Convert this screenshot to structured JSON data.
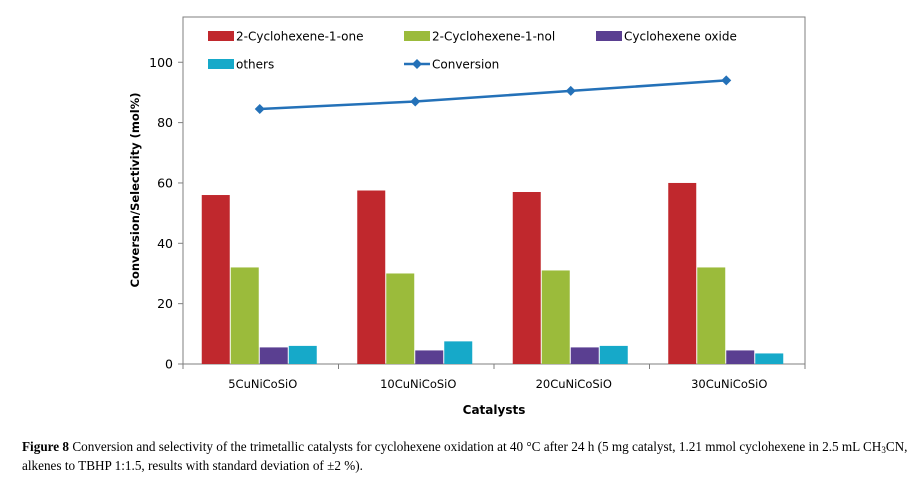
{
  "chart_data": {
    "type": "bar",
    "title": "",
    "xlabel": "Catalysts",
    "ylabel": "Conversion/Selectivity (mol%)",
    "ylim": [
      0,
      115
    ],
    "yticks": [
      0,
      20,
      40,
      60,
      80,
      100
    ],
    "grid": false,
    "legend_position": "top",
    "categories": [
      "5CuNiCoSiO",
      "10CuNiCoSiO",
      "20CuNiCoSiO",
      "30CuNiCoSiO"
    ],
    "series": [
      {
        "name": "2-Cyclohexene-1-one",
        "type": "bar",
        "color": "#c0282d",
        "values": [
          56,
          57.5,
          57,
          60
        ]
      },
      {
        "name": "2-Cyclohexene-1-nol",
        "type": "bar",
        "color": "#9bbb3b",
        "values": [
          32,
          30,
          31,
          32
        ]
      },
      {
        "name": "Cyclohexene oxide",
        "type": "bar",
        "color": "#5a3f91",
        "values": [
          5.5,
          4.5,
          5.5,
          4.5
        ]
      },
      {
        "name": "others",
        "type": "bar",
        "color": "#16a9c9",
        "values": [
          6,
          7.5,
          6,
          3.5
        ]
      },
      {
        "name": "Conversion",
        "type": "line",
        "color": "#2471b8",
        "values": [
          84.5,
          87,
          90.5,
          94
        ]
      }
    ]
  },
  "caption": {
    "label": "Figure 8",
    "text_before_sub": " Conversion and selectivity of the trimetallic catalysts for cyclohexene oxidation at 40 °C after 24 h (5 mg catalyst, 1.21 mmol cyclohexene in 2.5 mL CH",
    "sub": "3",
    "text_after_sub": "CN, alkenes to TBHP 1:1.5, results with standard deviation of ±2 %)."
  }
}
